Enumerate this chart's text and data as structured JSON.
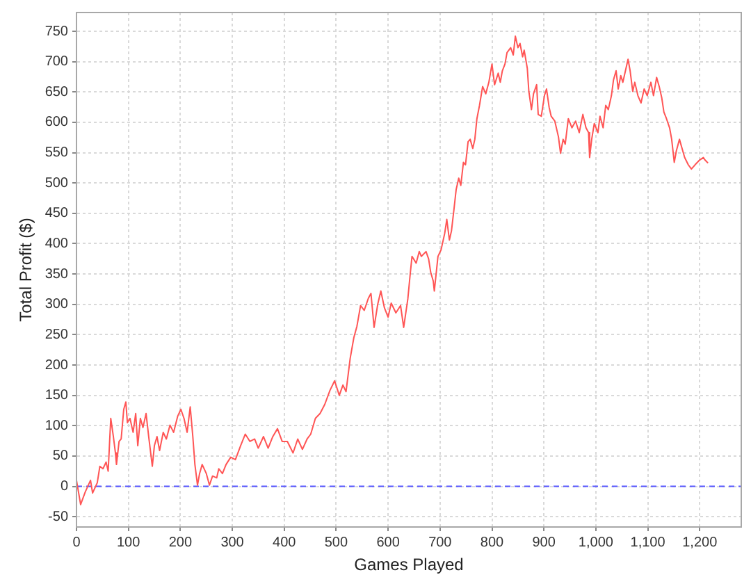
{
  "chart_data": {
    "type": "line",
    "xlabel": "Games Played",
    "ylabel": "Total Profit ($)",
    "color": "#ff5555",
    "x": [
      0,
      8,
      17,
      27,
      31,
      40,
      45,
      51,
      57,
      61,
      66,
      71,
      75,
      77,
      82,
      86,
      91,
      95,
      98,
      103,
      109,
      114,
      118,
      123,
      128,
      134,
      139,
      146,
      150,
      155,
      160,
      167,
      173,
      180,
      187,
      195,
      201,
      207,
      213,
      219,
      224,
      228,
      233,
      237,
      242,
      250,
      256,
      262,
      270,
      274,
      281,
      288,
      297,
      306,
      316,
      325,
      334,
      343,
      350,
      360,
      369,
      378,
      387,
      396,
      406,
      417,
      426,
      435,
      444,
      451,
      460,
      469,
      478,
      488,
      497,
      506,
      513,
      519,
      527,
      534,
      540,
      547,
      554,
      562,
      567,
      573,
      580,
      586,
      593,
      600,
      606,
      615,
      624,
      630,
      638,
      642,
      646,
      654,
      660,
      664,
      673,
      678,
      682,
      687,
      689,
      696,
      702,
      709,
      713,
      718,
      722,
      727,
      731,
      736,
      740,
      745,
      749,
      754,
      758,
      763,
      767,
      771,
      776,
      782,
      788,
      794,
      800,
      805,
      812,
      816,
      820,
      825,
      829,
      836,
      841,
      845,
      850,
      854,
      859,
      862,
      868,
      871,
      876,
      880,
      886,
      889,
      895,
      901,
      905,
      910,
      914,
      921,
      928,
      932,
      937,
      941,
      947,
      954,
      961,
      968,
      975,
      981,
      986,
      988,
      992,
      997,
      1004,
      1008,
      1014,
      1019,
      1024,
      1030,
      1034,
      1039,
      1043,
      1048,
      1052,
      1057,
      1062,
      1066,
      1071,
      1075,
      1081,
      1087,
      1093,
      1099,
      1106,
      1111,
      1117,
      1122,
      1127,
      1131,
      1136,
      1142,
      1146,
      1151,
      1155,
      1161,
      1166,
      1171,
      1178,
      1184,
      1191,
      1200,
      1207,
      1210,
      1216
    ],
    "values": [
      10,
      -30,
      -9,
      10,
      -11,
      6,
      33,
      29,
      40,
      25,
      112,
      82,
      55,
      36,
      74,
      78,
      127,
      139,
      105,
      112,
      89,
      120,
      67,
      112,
      97,
      120,
      82,
      33,
      67,
      82,
      59,
      89,
      78,
      101,
      89,
      116,
      127,
      112,
      89,
      131,
      82,
      36,
      2,
      21,
      36,
      21,
      2,
      17,
      14,
      29,
      21,
      36,
      48,
      44,
      67,
      86,
      74,
      78,
      63,
      82,
      63,
      82,
      95,
      74,
      74,
      55,
      78,
      61,
      78,
      86,
      112,
      120,
      135,
      158,
      174,
      150,
      167,
      156,
      211,
      245,
      264,
      298,
      290,
      310,
      318,
      262,
      300,
      322,
      294,
      279,
      302,
      286,
      298,
      262,
      309,
      345,
      379,
      368,
      387,
      379,
      387,
      375,
      353,
      338,
      322,
      379,
      390,
      417,
      440,
      406,
      421,
      458,
      489,
      508,
      496,
      534,
      530,
      568,
      572,
      557,
      572,
      606,
      628,
      659,
      647,
      666,
      696,
      662,
      681,
      666,
      685,
      696,
      715,
      723,
      711,
      742,
      723,
      730,
      708,
      719,
      689,
      651,
      621,
      647,
      662,
      613,
      610,
      644,
      655,
      625,
      610,
      602,
      576,
      549,
      572,
      564,
      606,
      591,
      602,
      583,
      613,
      591,
      583,
      542,
      572,
      598,
      583,
      610,
      591,
      628,
      621,
      644,
      670,
      685,
      655,
      677,
      666,
      685,
      704,
      685,
      651,
      666,
      644,
      632,
      655,
      644,
      666,
      644,
      674,
      659,
      640,
      617,
      606,
      591,
      572,
      534,
      553,
      572,
      557,
      542,
      530,
      523,
      530,
      538,
      542,
      538,
      533
    ],
    "xlim": [
      0,
      1280
    ],
    "ylim": [
      -67,
      781
    ],
    "xticks": [
      0,
      100,
      200,
      300,
      400,
      500,
      600,
      700,
      800,
      900,
      {
        "value": 1000,
        "label": "1,000"
      },
      {
        "value": 1100,
        "label": "1,100"
      },
      {
        "value": 1200,
        "label": "1,200"
      }
    ],
    "yticks": [
      -50,
      0,
      50,
      100,
      150,
      200,
      250,
      300,
      350,
      400,
      450,
      500,
      550,
      600,
      650,
      700,
      750
    ],
    "grid": true,
    "ref_lines": [
      {
        "axis": "y",
        "value": 0,
        "color": "#5555ff",
        "line_style": "dashed"
      }
    ]
  }
}
